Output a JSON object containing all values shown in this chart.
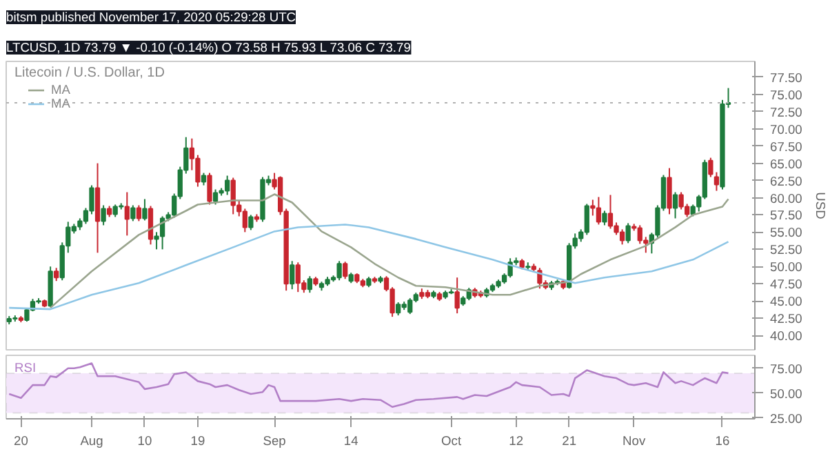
{
  "chart_data": [
    {
      "type": "candlestick",
      "title": "Litecoin / U.S. Dollar, 1D",
      "subtitle": "LTCUSD, 1D 73.79 ▼ -0.10 (-0.14%) O 73.58 H 75.93 L 73.06 C 73.79",
      "annotations": [
        "bitsm published November 17, 2020 05:29:28 UTC"
      ],
      "ylabel": "USD",
      "x": [
        "2020-07-18",
        "2020-07-19",
        "2020-07-20",
        "2020-07-21",
        "2020-07-22",
        "2020-07-23",
        "2020-07-24",
        "2020-07-25",
        "2020-07-26",
        "2020-07-27",
        "2020-07-28",
        "2020-07-29",
        "2020-07-30",
        "2020-07-31",
        "2020-08-01",
        "2020-08-02",
        "2020-08-03",
        "2020-08-04",
        "2020-08-05",
        "2020-08-06",
        "2020-08-07",
        "2020-08-08",
        "2020-08-09",
        "2020-08-10",
        "2020-08-11",
        "2020-08-12",
        "2020-08-13",
        "2020-08-14",
        "2020-08-15",
        "2020-08-16",
        "2020-08-17",
        "2020-08-18",
        "2020-08-19",
        "2020-08-20",
        "2020-08-21",
        "2020-08-22",
        "2020-08-23",
        "2020-08-24",
        "2020-08-25",
        "2020-08-26",
        "2020-08-27",
        "2020-08-28",
        "2020-08-29",
        "2020-08-30",
        "2020-08-31",
        "2020-09-01",
        "2020-09-02",
        "2020-09-03",
        "2020-09-04",
        "2020-09-05",
        "2020-09-06",
        "2020-09-07",
        "2020-09-08",
        "2020-09-09",
        "2020-09-10",
        "2020-09-11",
        "2020-09-12",
        "2020-09-13",
        "2020-09-14",
        "2020-09-15",
        "2020-09-16",
        "2020-09-17",
        "2020-09-18",
        "2020-09-19",
        "2020-09-20",
        "2020-09-21",
        "2020-09-22",
        "2020-09-23",
        "2020-09-24",
        "2020-09-25",
        "2020-09-26",
        "2020-09-27",
        "2020-09-28",
        "2020-09-29",
        "2020-09-30",
        "2020-10-01",
        "2020-10-02",
        "2020-10-03",
        "2020-10-04",
        "2020-10-05",
        "2020-10-06",
        "2020-10-07",
        "2020-10-08",
        "2020-10-09",
        "2020-10-10",
        "2020-10-11",
        "2020-10-12",
        "2020-10-13",
        "2020-10-14",
        "2020-10-15",
        "2020-10-16",
        "2020-10-17",
        "2020-10-18",
        "2020-10-19",
        "2020-10-20",
        "2020-10-21",
        "2020-10-22",
        "2020-10-23",
        "2020-10-24",
        "2020-10-25",
        "2020-10-26",
        "2020-10-27",
        "2020-10-28",
        "2020-10-29",
        "2020-10-30",
        "2020-10-31",
        "2020-11-01",
        "2020-11-02",
        "2020-11-03",
        "2020-11-04",
        "2020-11-05",
        "2020-11-06",
        "2020-11-07",
        "2020-11-08",
        "2020-11-09",
        "2020-11-10",
        "2020-11-11",
        "2020-11-12",
        "2020-11-13",
        "2020-11-14",
        "2020-11-15",
        "2020-11-16",
        "2020-11-17"
      ],
      "ohlc": [
        [
          42.0,
          42.8,
          41.6,
          42.4
        ],
        [
          42.4,
          42.9,
          42.0,
          42.5
        ],
        [
          42.5,
          42.8,
          41.9,
          42.2
        ],
        [
          42.2,
          43.9,
          42.0,
          43.7
        ],
        [
          43.7,
          45.3,
          43.5,
          44.9
        ],
        [
          44.9,
          45.4,
          44.6,
          45.0
        ],
        [
          45.0,
          45.2,
          44.1,
          44.3
        ],
        [
          44.3,
          50.0,
          44.1,
          49.3
        ],
        [
          49.3,
          49.8,
          47.9,
          48.4
        ],
        [
          48.4,
          53.5,
          48.0,
          53.0
        ],
        [
          53.0,
          56.5,
          52.0,
          55.7
        ],
        [
          55.2,
          56.2,
          54.8,
          55.8
        ],
        [
          55.8,
          57.0,
          55.3,
          56.6
        ],
        [
          56.6,
          58.5,
          56.2,
          58.1
        ],
        [
          58.1,
          61.8,
          57.6,
          61.4
        ],
        [
          61.4,
          65.0,
          52.0,
          56.6
        ],
        [
          56.6,
          58.9,
          56.0,
          58.4
        ],
        [
          58.4,
          58.8,
          57.2,
          57.6
        ],
        [
          57.6,
          59.0,
          57.2,
          58.7
        ],
        [
          58.7,
          59.2,
          58.3,
          58.8
        ],
        [
          58.7,
          60.8,
          54.5,
          56.9
        ],
        [
          57.0,
          58.9,
          56.6,
          58.5
        ],
        [
          58.5,
          58.9,
          56.6,
          57.0
        ],
        [
          57.0,
          59.8,
          56.7,
          58.4
        ],
        [
          58.4,
          58.8,
          53.2,
          54.0
        ],
        [
          54.0,
          55.0,
          52.5,
          54.4
        ],
        [
          54.4,
          57.3,
          52.5,
          57.0
        ],
        [
          57.0,
          57.9,
          56.6,
          57.5
        ],
        [
          57.5,
          60.6,
          57.1,
          60.2
        ],
        [
          60.2,
          64.5,
          59.8,
          64.0
        ],
        [
          64.0,
          68.8,
          63.5,
          67.2
        ],
        [
          67.2,
          68.6,
          64.0,
          65.7
        ],
        [
          65.7,
          66.2,
          61.6,
          62.3
        ],
        [
          62.3,
          63.6,
          61.8,
          63.2
        ],
        [
          63.2,
          63.6,
          59.0,
          59.5
        ],
        [
          59.5,
          61.2,
          59.0,
          60.7
        ],
        [
          60.7,
          61.4,
          60.3,
          61.0
        ],
        [
          61.0,
          63.2,
          60.4,
          62.5
        ],
        [
          62.5,
          62.9,
          57.6,
          58.9
        ],
        [
          58.9,
          59.6,
          57.3,
          58.0
        ],
        [
          58.0,
          58.4,
          55.0,
          55.7
        ],
        [
          55.7,
          57.5,
          55.3,
          57.2
        ],
        [
          57.2,
          57.6,
          56.5,
          56.9
        ],
        [
          56.9,
          63.0,
          56.5,
          62.6
        ],
        [
          62.2,
          63.2,
          61.8,
          62.6
        ],
        [
          62.6,
          63.6,
          61.2,
          61.6
        ],
        [
          62.9,
          63.1,
          57.5,
          58.0
        ],
        [
          58.0,
          58.4,
          46.5,
          47.5
        ],
        [
          47.5,
          50.8,
          46.7,
          50.2
        ],
        [
          50.2,
          50.6,
          46.3,
          47.6
        ],
        [
          47.6,
          48.0,
          46.2,
          46.7
        ],
        [
          46.7,
          48.6,
          46.2,
          48.2
        ],
        [
          48.2,
          48.5,
          47.2,
          47.5
        ],
        [
          47.0,
          47.8,
          46.5,
          47.5
        ],
        [
          47.5,
          48.5,
          47.2,
          48.1
        ],
        [
          48.1,
          48.7,
          47.8,
          48.4
        ],
        [
          48.4,
          50.8,
          48.0,
          50.4
        ],
        [
          50.4,
          50.7,
          48.2,
          48.6
        ],
        [
          47.9,
          49.1,
          47.6,
          48.8
        ],
        [
          48.8,
          49.0,
          47.6,
          47.9
        ],
        [
          47.9,
          48.2,
          47.0,
          47.3
        ],
        [
          47.3,
          48.5,
          47.0,
          48.2
        ],
        [
          48.2,
          48.5,
          47.6,
          47.9
        ],
        [
          47.9,
          48.6,
          47.6,
          48.3
        ],
        [
          48.3,
          48.6,
          46.4,
          46.7
        ],
        [
          46.7,
          47.0,
          42.7,
          43.3
        ],
        [
          43.3,
          44.8,
          42.9,
          44.5
        ],
        [
          44.1,
          44.9,
          43.7,
          44.5
        ],
        [
          43.4,
          45.4,
          43.1,
          45.1
        ],
        [
          45.1,
          46.2,
          44.8,
          45.9
        ],
        [
          46.2,
          46.8,
          45.3,
          45.7
        ],
        [
          46.2,
          46.6,
          45.4,
          45.7
        ],
        [
          45.7,
          46.5,
          45.4,
          46.2
        ],
        [
          46.0,
          46.3,
          45.0,
          45.3
        ],
        [
          45.6,
          46.5,
          45.3,
          46.2
        ],
        [
          46.2,
          46.7,
          46.0,
          46.3
        ],
        [
          46.3,
          48.4,
          43.2,
          44.0
        ],
        [
          44.6,
          45.7,
          44.3,
          45.4
        ],
        [
          45.4,
          46.9,
          45.1,
          46.6
        ],
        [
          46.6,
          46.9,
          45.5,
          45.8
        ],
        [
          46.2,
          46.5,
          45.5,
          45.8
        ],
        [
          45.8,
          46.9,
          45.5,
          46.6
        ],
        [
          46.6,
          47.5,
          46.3,
          47.2
        ],
        [
          47.2,
          48.1,
          46.9,
          47.8
        ],
        [
          47.8,
          49.0,
          47.5,
          48.7
        ],
        [
          48.7,
          51.2,
          48.4,
          50.6
        ],
        [
          50.6,
          51.3,
          50.2,
          50.8
        ],
        [
          50.8,
          51.1,
          49.6,
          49.9
        ],
        [
          49.9,
          50.6,
          49.5,
          50.0
        ],
        [
          50.0,
          50.4,
          49.3,
          49.6
        ],
        [
          49.4,
          49.8,
          46.8,
          47.6
        ],
        [
          47.6,
          48.0,
          46.7,
          47.0
        ],
        [
          47.0,
          47.9,
          46.6,
          47.6
        ],
        [
          47.6,
          48.1,
          47.3,
          47.8
        ],
        [
          47.8,
          48.0,
          46.7,
          47.0
        ],
        [
          47.0,
          53.4,
          46.8,
          53.0
        ],
        [
          53.0,
          54.8,
          52.6,
          54.1
        ],
        [
          54.1,
          55.4,
          53.6,
          55.0
        ],
        [
          55.0,
          59.1,
          54.6,
          58.8
        ],
        [
          58.8,
          59.7,
          57.4,
          58.5
        ],
        [
          58.5,
          60.1,
          56.1,
          56.5
        ],
        [
          56.5,
          58.1,
          56.0,
          57.7
        ],
        [
          57.7,
          60.4,
          55.5,
          55.9
        ],
        [
          55.9,
          56.4,
          54.6,
          55.0
        ],
        [
          55.0,
          55.4,
          53.2,
          53.8
        ],
        [
          53.8,
          56.3,
          53.4,
          55.9
        ],
        [
          55.8,
          56.2,
          55.2,
          55.6
        ],
        [
          55.6,
          56.0,
          53.3,
          53.8
        ],
        [
          53.8,
          54.3,
          52.0,
          53.4
        ],
        [
          53.4,
          54.9,
          51.9,
          54.6
        ],
        [
          54.6,
          58.9,
          54.2,
          58.5
        ],
        [
          58.5,
          63.3,
          58.1,
          62.9
        ],
        [
          62.9,
          64.3,
          57.6,
          58.5
        ],
        [
          58.5,
          60.8,
          57.0,
          60.4
        ],
        [
          60.4,
          60.8,
          58.3,
          58.7
        ],
        [
          58.7,
          59.1,
          57.2,
          57.6
        ],
        [
          57.6,
          59.0,
          57.3,
          58.7
        ],
        [
          58.7,
          60.4,
          58.0,
          60.1
        ],
        [
          60.1,
          65.5,
          59.8,
          65.1
        ],
        [
          65.4,
          65.8,
          63.0,
          63.4
        ],
        [
          63.0,
          63.7,
          61.0,
          61.9
        ],
        [
          61.6,
          74.2,
          61.2,
          73.58
        ],
        [
          73.58,
          75.93,
          73.06,
          73.79
        ]
      ],
      "series": [
        {
          "name": "MA",
          "type": "line",
          "color": "#9aa58e",
          "x": [
            "2020-07-25",
            "2020-08-01",
            "2020-08-09",
            "2020-08-17",
            "2020-08-19",
            "2020-08-25",
            "2020-08-30",
            "2020-09-01",
            "2020-09-04",
            "2020-09-09",
            "2020-09-14",
            "2020-09-18",
            "2020-09-22",
            "2020-09-25",
            "2020-09-30",
            "2020-10-08",
            "2020-10-11",
            "2020-10-16",
            "2020-10-21",
            "2020-10-23",
            "2020-10-28",
            "2020-11-03",
            "2020-11-08",
            "2020-11-11",
            "2020-11-16",
            "2020-11-17"
          ],
          "values": [
            44.0,
            49.3,
            54.6,
            58.1,
            59.0,
            59.6,
            59.6,
            60.5,
            59.3,
            55.1,
            52.8,
            50.4,
            48.4,
            47.2,
            47.0,
            45.9,
            45.9,
            47.2,
            47.8,
            48.9,
            51.0,
            53.0,
            55.7,
            57.5,
            58.7,
            59.8
          ]
        },
        {
          "name": "MA",
          "type": "line",
          "color": "#8ec6e6",
          "x": [
            "2020-07-18",
            "2020-07-25",
            "2020-08-01",
            "2020-08-09",
            "2020-08-17",
            "2020-08-25",
            "2020-09-01",
            "2020-09-05",
            "2020-09-13",
            "2020-09-17",
            "2020-09-25",
            "2020-09-30",
            "2020-10-08",
            "2020-10-11",
            "2020-10-16",
            "2020-10-22",
            "2020-10-27",
            "2020-11-04",
            "2020-11-11",
            "2020-11-17"
          ],
          "values": [
            44.0,
            43.8,
            45.9,
            47.6,
            50.2,
            52.8,
            55.1,
            55.7,
            56.1,
            55.7,
            54.0,
            52.8,
            51.0,
            50.2,
            49.0,
            47.6,
            48.4,
            49.3,
            51.0,
            53.6
          ]
        }
      ],
      "xlim": [
        "2020-07-17T12:00",
        "2020-11-21T12:00"
      ],
      "ylim": [
        37.9,
        79.8
      ],
      "yticks": [
        {
          "value": 40,
          "label": "40.00"
        },
        {
          "value": 42.5,
          "label": "42.50"
        },
        {
          "value": 45,
          "label": "45.00"
        },
        {
          "value": 47.5,
          "label": "47.50"
        },
        {
          "value": 50,
          "label": "50.00"
        },
        {
          "value": 52.5,
          "label": "52.50"
        },
        {
          "value": 55,
          "label": "55.00"
        },
        {
          "value": 57.5,
          "label": "57.50"
        },
        {
          "value": 60,
          "label": "60.00"
        },
        {
          "value": 62.5,
          "label": "62.50"
        },
        {
          "value": 65,
          "label": "65.00"
        },
        {
          "value": 67.5,
          "label": "67.50"
        },
        {
          "value": 70,
          "label": "70.00"
        },
        {
          "value": 72.5,
          "label": "72.50"
        },
        {
          "value": 75,
          "label": "75.00"
        },
        {
          "value": 77.5,
          "label": "77.50"
        }
      ],
      "ref_lines": [
        {
          "axis": "y",
          "value": 73.79,
          "color": "#b0b0b0",
          "line_style": "dotted"
        }
      ],
      "tick_labels": "y",
      "grid": false,
      "legend": "top left"
    },
    {
      "type": "line",
      "series": [
        {
          "name": "RSI",
          "color": "#b27fc7",
          "x": [
            "2020-07-18",
            "2020-07-20",
            "2020-07-22",
            "2020-07-24",
            "2020-07-25",
            "2020-07-26",
            "2020-07-28",
            "2020-07-29",
            "2020-07-30",
            "2020-08-01",
            "2020-08-02",
            "2020-08-04",
            "2020-08-05",
            "2020-08-07",
            "2020-08-09",
            "2020-08-10",
            "2020-08-12",
            "2020-08-14",
            "2020-08-15",
            "2020-08-17",
            "2020-08-19",
            "2020-08-21",
            "2020-08-22",
            "2020-08-24",
            "2020-08-26",
            "2020-08-28",
            "2020-08-30",
            "2020-08-31",
            "2020-09-01",
            "2020-09-02",
            "2020-09-03",
            "2020-09-05",
            "2020-09-08",
            "2020-09-12",
            "2020-09-14",
            "2020-09-16",
            "2020-09-19",
            "2020-09-21",
            "2020-09-23",
            "2020-09-25",
            "2020-09-28",
            "2020-10-02",
            "2020-10-03",
            "2020-10-05",
            "2020-10-07",
            "2020-10-11",
            "2020-10-12",
            "2020-10-13",
            "2020-10-16",
            "2020-10-18",
            "2020-10-20",
            "2020-10-21",
            "2020-10-22",
            "2020-10-24",
            "2020-10-27",
            "2020-10-29",
            "2020-10-31",
            "2020-11-01",
            "2020-11-03",
            "2020-11-05",
            "2020-11-06",
            "2020-11-08",
            "2020-11-09",
            "2020-11-11",
            "2020-11-13",
            "2020-11-15",
            "2020-11-16",
            "2020-11-17"
          ],
          "values": [
            49,
            45,
            58,
            58,
            67,
            66,
            75,
            75,
            76,
            80,
            67,
            67,
            67,
            64,
            61,
            54,
            56,
            59,
            69,
            71,
            62,
            59,
            56,
            58,
            53,
            49,
            51,
            58,
            56,
            42,
            42,
            42,
            42,
            44,
            42,
            44,
            43,
            36,
            39,
            43,
            44,
            46,
            44,
            48,
            47,
            56,
            61,
            58,
            56,
            48,
            49,
            47,
            65,
            73,
            67,
            65,
            59,
            58,
            60,
            56,
            71,
            60,
            62,
            58,
            65,
            60,
            71,
            70
          ]
        }
      ],
      "xlim": [
        "2020-07-17T12:00",
        "2020-11-21T12:00"
      ],
      "xticks": [
        {
          "value": "2020-07-20",
          "label": "20"
        },
        {
          "value": "2020-08-01",
          "label": "Aug"
        },
        {
          "value": "2020-08-10",
          "label": "10"
        },
        {
          "value": "2020-08-19",
          "label": "19"
        },
        {
          "value": "2020-09-01",
          "label": "Sep"
        },
        {
          "value": "2020-09-14",
          "label": "14"
        },
        {
          "value": "2020-10-01",
          "label": "Oct"
        },
        {
          "value": "2020-10-12",
          "label": "12"
        },
        {
          "value": "2020-10-21",
          "label": "21"
        },
        {
          "value": "2020-11-01",
          "label": "Nov"
        },
        {
          "value": "2020-11-16",
          "label": "16"
        }
      ],
      "ylim": [
        24,
        88
      ],
      "yticks": [
        {
          "value": 25,
          "label": "25.00"
        },
        {
          "value": 50,
          "label": "50.00"
        },
        {
          "value": 75,
          "label": "75.00"
        }
      ],
      "bands": [
        {
          "axis": "y",
          "from": 30,
          "to": 70,
          "color": "#f4e6fb"
        }
      ],
      "grid": false,
      "legend": false
    }
  ]
}
